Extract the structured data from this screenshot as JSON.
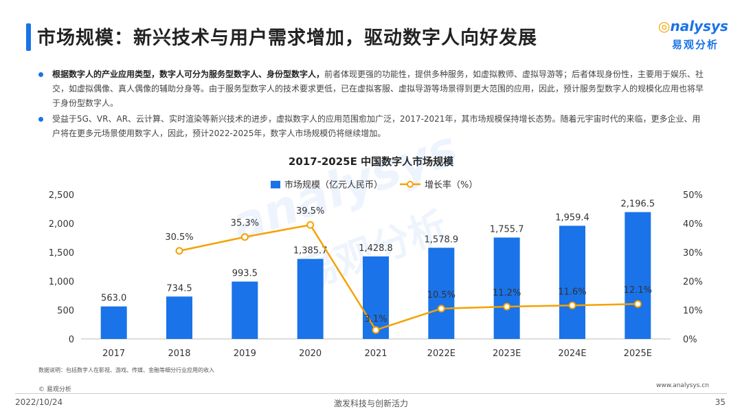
{
  "header": {
    "title": "市场规模：新兴技术与用户需求增加，驱动数字人向好发展",
    "logo_word_prefix": "",
    "logo_word": "nalysys",
    "logo_cn": "易观分析"
  },
  "bullets": [
    {
      "strong": "根据数字人的产业应用类型，数字人可分为服务型数字人、身份型数字人，",
      "text": "前者体现更强的功能性，提供多种服务，如虚拟教师、虚拟导游等；后者体现身份性，主要用于娱乐、社交，如虚拟偶像、真人偶像的辅助分身等。由于服务型数字人的技术要求更低，已在虚拟客服、虚拟导游等场景得到更大范围的应用，因此，预计服务型数字人的规模化应用也将早于身份型数字人。"
    },
    {
      "strong": "",
      "text": "受益于5G、VR、AR、云计算、实时渲染等新兴技术的进步，虚拟数字人的应用范围愈加广泛，2017-2021年，其市场规模保持增长态势。随着元宇宙时代的来临，更多企业、用户将在更多元场景使用数字人，因此，预计2022-2025年，数字人市场规模仍将继续增加。"
    }
  ],
  "chart_data": {
    "type": "bar",
    "title": "2017-2025E 中国数字人市场规模",
    "categories": [
      "2017",
      "2018",
      "2019",
      "2020",
      "2021",
      "2022E",
      "2023E",
      "2024E",
      "2025E"
    ],
    "series": [
      {
        "name": "市场规模（亿元人民币）",
        "type": "bar",
        "axis": "left",
        "values": [
          563.0,
          734.5,
          993.5,
          1385.7,
          1428.8,
          1578.9,
          1755.7,
          1959.4,
          2196.5
        ],
        "labels": [
          "563.0",
          "734.5",
          "993.5",
          "1,385.7",
          "1,428.8",
          "1,578.9",
          "1,755.7",
          "1,959.4",
          "2,196.5"
        ],
        "color": "#1a73e8"
      },
      {
        "name": "增长率（%）",
        "type": "line",
        "axis": "right",
        "values": [
          null,
          30.5,
          35.3,
          39.5,
          3.1,
          10.5,
          11.2,
          11.6,
          12.1
        ],
        "labels": [
          "",
          "30.5%",
          "35.3%",
          "39.5%",
          "3.1%",
          "10.5%",
          "11.2%",
          "11.6%",
          "12.1%"
        ],
        "color": "#f5a100"
      }
    ],
    "y_left": {
      "min": 0,
      "max": 2500,
      "ticks": [
        "0",
        "500",
        "1,000",
        "1,500",
        "2,000",
        "2,500"
      ]
    },
    "y_right": {
      "min": 0,
      "max": 50,
      "ticks": [
        "0%",
        "10%",
        "20%",
        "30%",
        "40%",
        "50%"
      ]
    },
    "legend": "top-center",
    "grid": false
  },
  "watermark": {
    "word": "analysys",
    "cn": "易观分析"
  },
  "footer": {
    "note": "数据说明：包括数字人在影视、游戏、传媒、金融等细分行业应用的收入",
    "source": "© 易观分析",
    "url": "www.analysys.cn",
    "date": "2022/10/24",
    "slogan": "激发科技与创新活力",
    "page": "35"
  },
  "colors": {
    "accent": "#1a73e8",
    "line": "#f5a100"
  }
}
